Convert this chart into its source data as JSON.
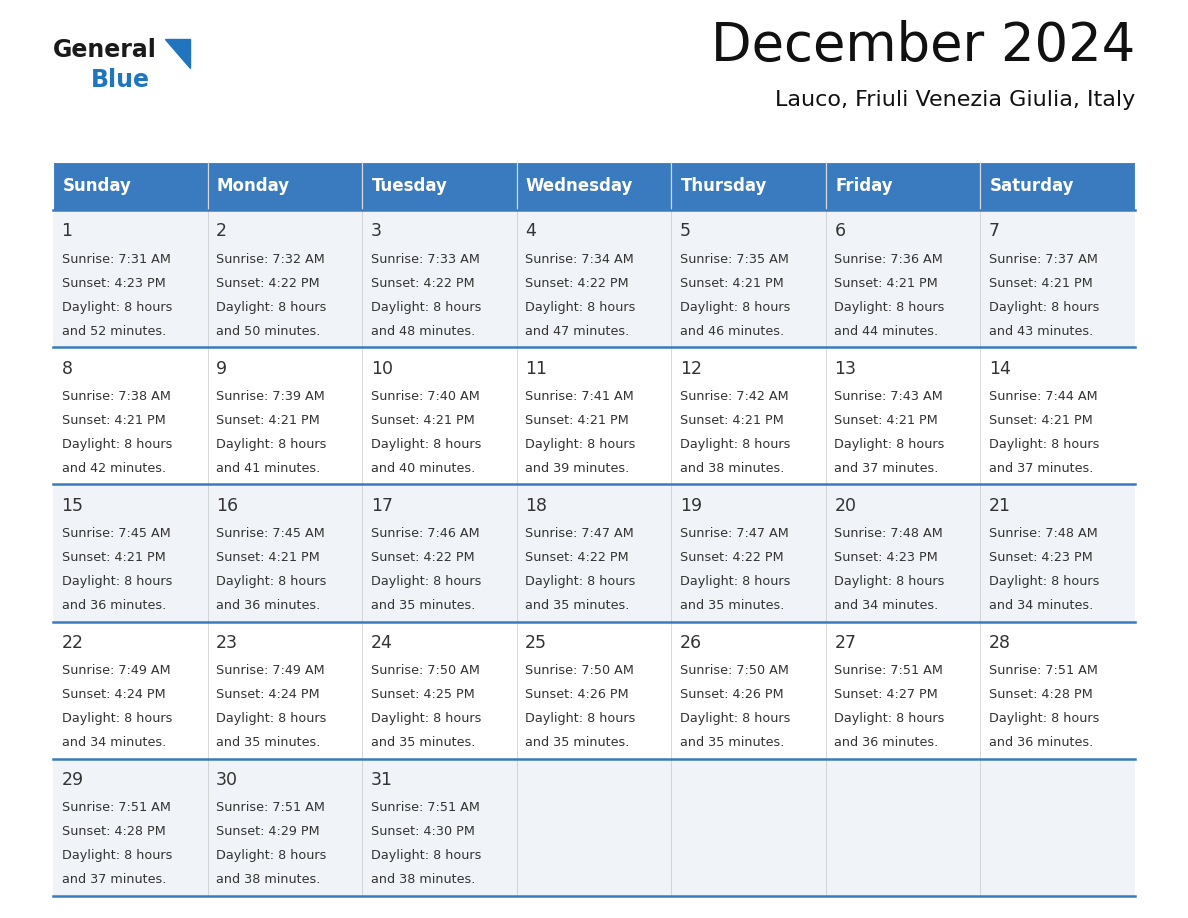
{
  "title": "December 2024",
  "subtitle": "Lauco, Friuli Venezia Giulia, Italy",
  "header_bg_color": "#3a7bbf",
  "header_text_color": "#ffffff",
  "cell_bg_color_odd": "#f0f4f8",
  "cell_bg_color_even": "#ffffff",
  "day_names": [
    "Sunday",
    "Monday",
    "Tuesday",
    "Wednesday",
    "Thursday",
    "Friday",
    "Saturday"
  ],
  "days": [
    {
      "day": 1,
      "col": 0,
      "row": 0,
      "sunrise": "7:31 AM",
      "sunset": "4:23 PM",
      "daylight": "8 hours",
      "daylight2": "and 52 minutes."
    },
    {
      "day": 2,
      "col": 1,
      "row": 0,
      "sunrise": "7:32 AM",
      "sunset": "4:22 PM",
      "daylight": "8 hours",
      "daylight2": "and 50 minutes."
    },
    {
      "day": 3,
      "col": 2,
      "row": 0,
      "sunrise": "7:33 AM",
      "sunset": "4:22 PM",
      "daylight": "8 hours",
      "daylight2": "and 48 minutes."
    },
    {
      "day": 4,
      "col": 3,
      "row": 0,
      "sunrise": "7:34 AM",
      "sunset": "4:22 PM",
      "daylight": "8 hours",
      "daylight2": "and 47 minutes."
    },
    {
      "day": 5,
      "col": 4,
      "row": 0,
      "sunrise": "7:35 AM",
      "sunset": "4:21 PM",
      "daylight": "8 hours",
      "daylight2": "and 46 minutes."
    },
    {
      "day": 6,
      "col": 5,
      "row": 0,
      "sunrise": "7:36 AM",
      "sunset": "4:21 PM",
      "daylight": "8 hours",
      "daylight2": "and 44 minutes."
    },
    {
      "day": 7,
      "col": 6,
      "row": 0,
      "sunrise": "7:37 AM",
      "sunset": "4:21 PM",
      "daylight": "8 hours",
      "daylight2": "and 43 minutes."
    },
    {
      "day": 8,
      "col": 0,
      "row": 1,
      "sunrise": "7:38 AM",
      "sunset": "4:21 PM",
      "daylight": "8 hours",
      "daylight2": "and 42 minutes."
    },
    {
      "day": 9,
      "col": 1,
      "row": 1,
      "sunrise": "7:39 AM",
      "sunset": "4:21 PM",
      "daylight": "8 hours",
      "daylight2": "and 41 minutes."
    },
    {
      "day": 10,
      "col": 2,
      "row": 1,
      "sunrise": "7:40 AM",
      "sunset": "4:21 PM",
      "daylight": "8 hours",
      "daylight2": "and 40 minutes."
    },
    {
      "day": 11,
      "col": 3,
      "row": 1,
      "sunrise": "7:41 AM",
      "sunset": "4:21 PM",
      "daylight": "8 hours",
      "daylight2": "and 39 minutes."
    },
    {
      "day": 12,
      "col": 4,
      "row": 1,
      "sunrise": "7:42 AM",
      "sunset": "4:21 PM",
      "daylight": "8 hours",
      "daylight2": "and 38 minutes."
    },
    {
      "day": 13,
      "col": 5,
      "row": 1,
      "sunrise": "7:43 AM",
      "sunset": "4:21 PM",
      "daylight": "8 hours",
      "daylight2": "and 37 minutes."
    },
    {
      "day": 14,
      "col": 6,
      "row": 1,
      "sunrise": "7:44 AM",
      "sunset": "4:21 PM",
      "daylight": "8 hours",
      "daylight2": "and 37 minutes."
    },
    {
      "day": 15,
      "col": 0,
      "row": 2,
      "sunrise": "7:45 AM",
      "sunset": "4:21 PM",
      "daylight": "8 hours",
      "daylight2": "and 36 minutes."
    },
    {
      "day": 16,
      "col": 1,
      "row": 2,
      "sunrise": "7:45 AM",
      "sunset": "4:21 PM",
      "daylight": "8 hours",
      "daylight2": "and 36 minutes."
    },
    {
      "day": 17,
      "col": 2,
      "row": 2,
      "sunrise": "7:46 AM",
      "sunset": "4:22 PM",
      "daylight": "8 hours",
      "daylight2": "and 35 minutes."
    },
    {
      "day": 18,
      "col": 3,
      "row": 2,
      "sunrise": "7:47 AM",
      "sunset": "4:22 PM",
      "daylight": "8 hours",
      "daylight2": "and 35 minutes."
    },
    {
      "day": 19,
      "col": 4,
      "row": 2,
      "sunrise": "7:47 AM",
      "sunset": "4:22 PM",
      "daylight": "8 hours",
      "daylight2": "and 35 minutes."
    },
    {
      "day": 20,
      "col": 5,
      "row": 2,
      "sunrise": "7:48 AM",
      "sunset": "4:23 PM",
      "daylight": "8 hours",
      "daylight2": "and 34 minutes."
    },
    {
      "day": 21,
      "col": 6,
      "row": 2,
      "sunrise": "7:48 AM",
      "sunset": "4:23 PM",
      "daylight": "8 hours",
      "daylight2": "and 34 minutes."
    },
    {
      "day": 22,
      "col": 0,
      "row": 3,
      "sunrise": "7:49 AM",
      "sunset": "4:24 PM",
      "daylight": "8 hours",
      "daylight2": "and 34 minutes."
    },
    {
      "day": 23,
      "col": 1,
      "row": 3,
      "sunrise": "7:49 AM",
      "sunset": "4:24 PM",
      "daylight": "8 hours",
      "daylight2": "and 35 minutes."
    },
    {
      "day": 24,
      "col": 2,
      "row": 3,
      "sunrise": "7:50 AM",
      "sunset": "4:25 PM",
      "daylight": "8 hours",
      "daylight2": "and 35 minutes."
    },
    {
      "day": 25,
      "col": 3,
      "row": 3,
      "sunrise": "7:50 AM",
      "sunset": "4:26 PM",
      "daylight": "8 hours",
      "daylight2": "and 35 minutes."
    },
    {
      "day": 26,
      "col": 4,
      "row": 3,
      "sunrise": "7:50 AM",
      "sunset": "4:26 PM",
      "daylight": "8 hours",
      "daylight2": "and 35 minutes."
    },
    {
      "day": 27,
      "col": 5,
      "row": 3,
      "sunrise": "7:51 AM",
      "sunset": "4:27 PM",
      "daylight": "8 hours",
      "daylight2": "and 36 minutes."
    },
    {
      "day": 28,
      "col": 6,
      "row": 3,
      "sunrise": "7:51 AM",
      "sunset": "4:28 PM",
      "daylight": "8 hours",
      "daylight2": "and 36 minutes."
    },
    {
      "day": 29,
      "col": 0,
      "row": 4,
      "sunrise": "7:51 AM",
      "sunset": "4:28 PM",
      "daylight": "8 hours",
      "daylight2": "and 37 minutes."
    },
    {
      "day": 30,
      "col": 1,
      "row": 4,
      "sunrise": "7:51 AM",
      "sunset": "4:29 PM",
      "daylight": "8 hours",
      "daylight2": "and 38 minutes."
    },
    {
      "day": 31,
      "col": 2,
      "row": 4,
      "sunrise": "7:51 AM",
      "sunset": "4:30 PM",
      "daylight": "8 hours",
      "daylight2": "and 38 minutes."
    }
  ],
  "logo_text_general": "General",
  "logo_text_blue": "Blue",
  "logo_color_general": "#1a1a1a",
  "logo_color_blue": "#2175be",
  "logo_triangle_color": "#2175be",
  "divider_color": "#3a7bbf",
  "cell_text_color": "#333333",
  "num_rows": 5,
  "fig_width": 11.88,
  "fig_height": 9.18,
  "dpi": 100
}
